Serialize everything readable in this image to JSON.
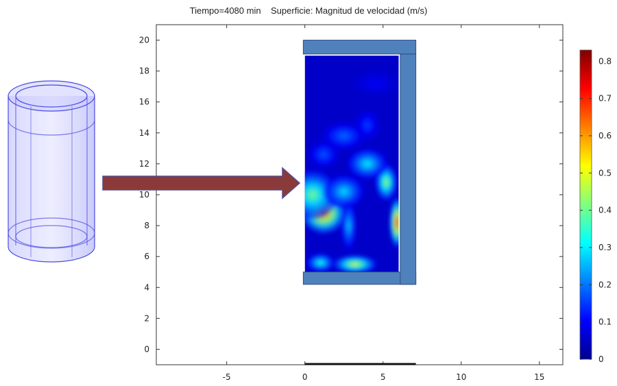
{
  "chart_data": {
    "type": "heatmap",
    "title": "Tiempo=4080 min",
    "subtitle": "Superficie: Magnitud de velocidad (m/s)",
    "xlabel": "",
    "ylabel": "",
    "xlim": [
      -9.5,
      16.5
    ],
    "ylim": [
      -1,
      21
    ],
    "x_ticks": [
      "-5",
      "0",
      "5",
      "10",
      "15"
    ],
    "x_tick_values": [
      -5,
      0,
      5,
      10,
      15
    ],
    "y_ticks": [
      "0",
      "2",
      "4",
      "6",
      "8",
      "10",
      "12",
      "14",
      "16",
      "18",
      "20"
    ],
    "y_tick_values": [
      0,
      2,
      4,
      6,
      8,
      10,
      12,
      14,
      16,
      18,
      20
    ],
    "grid": false,
    "colorbar": {
      "min": 0,
      "max": 0.83,
      "ticks": [
        "0",
        "0.1",
        "0.2",
        "0.3",
        "0.4",
        "0.5",
        "0.6",
        "0.7",
        "0.8"
      ],
      "tick_values": [
        0,
        0.1,
        0.2,
        0.3,
        0.4,
        0.5,
        0.6,
        0.7,
        0.8
      ],
      "colormap": "jet"
    },
    "domain_x": [
      0,
      6
    ],
    "domain_y": [
      5,
      19
    ],
    "wall_color": "#4f81bd",
    "arrow_color": "#8b3a3a",
    "cylinder_color": "#6a6af0",
    "hotspots": [
      {
        "x": 1.2,
        "y": 8.8,
        "sx": 1.4,
        "sy": 1.3,
        "value": 0.68
      },
      {
        "x": 0.5,
        "y": 10.0,
        "sx": 1.6,
        "sy": 1.6,
        "value": 0.42
      },
      {
        "x": 2.5,
        "y": 10.2,
        "sx": 1.3,
        "sy": 1.1,
        "value": 0.3
      },
      {
        "x": 5.9,
        "y": 8.2,
        "sx": 0.5,
        "sy": 1.6,
        "value": 0.72
      },
      {
        "x": 5.2,
        "y": 10.8,
        "sx": 0.7,
        "sy": 1.2,
        "value": 0.45
      },
      {
        "x": 4.0,
        "y": 12.0,
        "sx": 1.3,
        "sy": 1.0,
        "value": 0.32
      },
      {
        "x": 3.2,
        "y": 5.5,
        "sx": 1.4,
        "sy": 0.6,
        "value": 0.5
      },
      {
        "x": 1.0,
        "y": 5.6,
        "sx": 0.9,
        "sy": 0.6,
        "value": 0.35
      },
      {
        "x": 2.8,
        "y": 8.0,
        "sx": 0.5,
        "sy": 1.6,
        "value": 0.28
      },
      {
        "x": 2.5,
        "y": 13.8,
        "sx": 1.4,
        "sy": 0.9,
        "value": 0.2
      },
      {
        "x": 4.0,
        "y": 14.5,
        "sx": 0.8,
        "sy": 1.0,
        "value": 0.16
      },
      {
        "x": 1.2,
        "y": 12.6,
        "sx": 1.0,
        "sy": 0.9,
        "value": 0.18
      },
      {
        "x": 4.5,
        "y": 17.2,
        "sx": 1.5,
        "sy": 0.8,
        "value": 0.1
      }
    ]
  }
}
